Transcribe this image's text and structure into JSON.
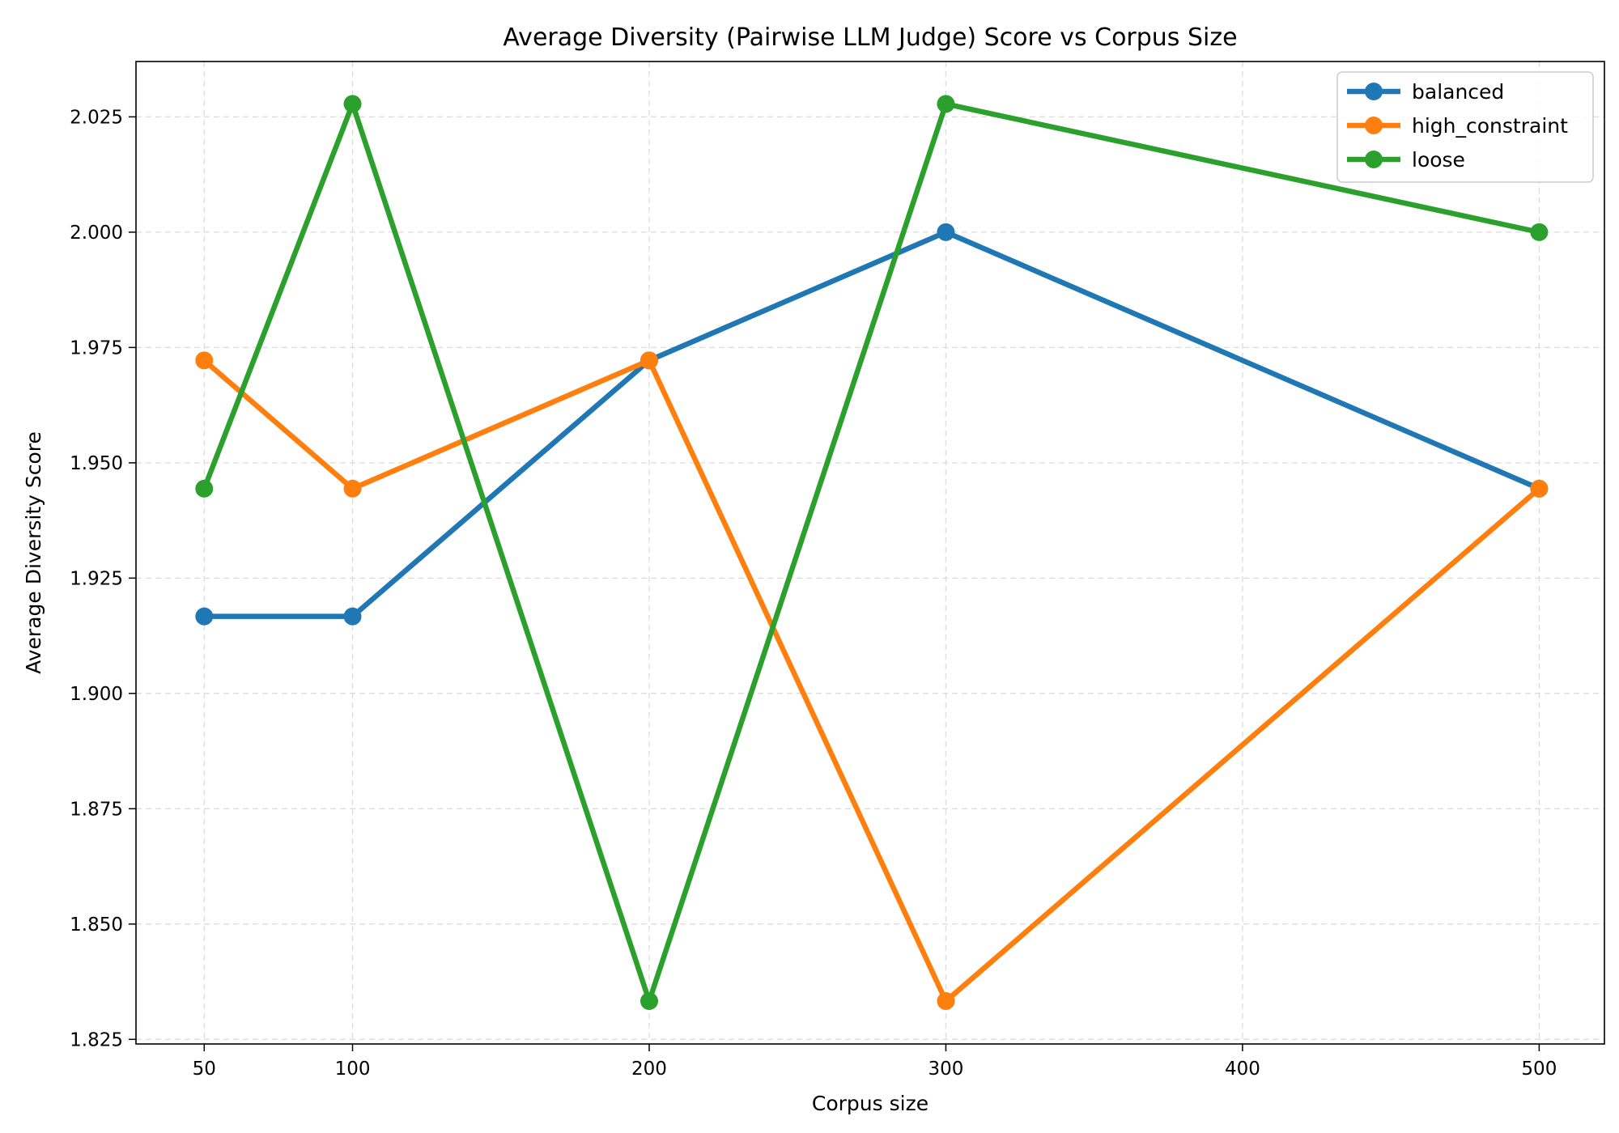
{
  "chart_data": {
    "type": "line",
    "title": "Average Diversity (Pairwise LLM Judge) Score vs Corpus Size",
    "xlabel": "Corpus size",
    "ylabel": "Average Diversity Score",
    "x": [
      50,
      100,
      200,
      300,
      500
    ],
    "x_ticks": [
      50,
      100,
      200,
      300,
      400,
      500
    ],
    "y_ticks": [
      1.825,
      1.85,
      1.875,
      1.9,
      1.925,
      1.95,
      1.975,
      2.0,
      2.025
    ],
    "xlim": [
      27,
      522
    ],
    "ylim": [
      1.824,
      2.037
    ],
    "grid": true,
    "legend_position": "top-right",
    "series": [
      {
        "name": "balanced",
        "color": "#1f77b4",
        "values": [
          1.9167,
          1.9167,
          1.9722,
          2.0,
          1.9444
        ]
      },
      {
        "name": "high_constraint",
        "color": "#ff7f0e",
        "values": [
          1.9722,
          1.9444,
          1.9722,
          1.8333,
          1.9444
        ]
      },
      {
        "name": "loose",
        "color": "#2ca02c",
        "values": [
          1.9444,
          2.0278,
          1.8333,
          2.0278,
          2.0
        ]
      }
    ]
  }
}
